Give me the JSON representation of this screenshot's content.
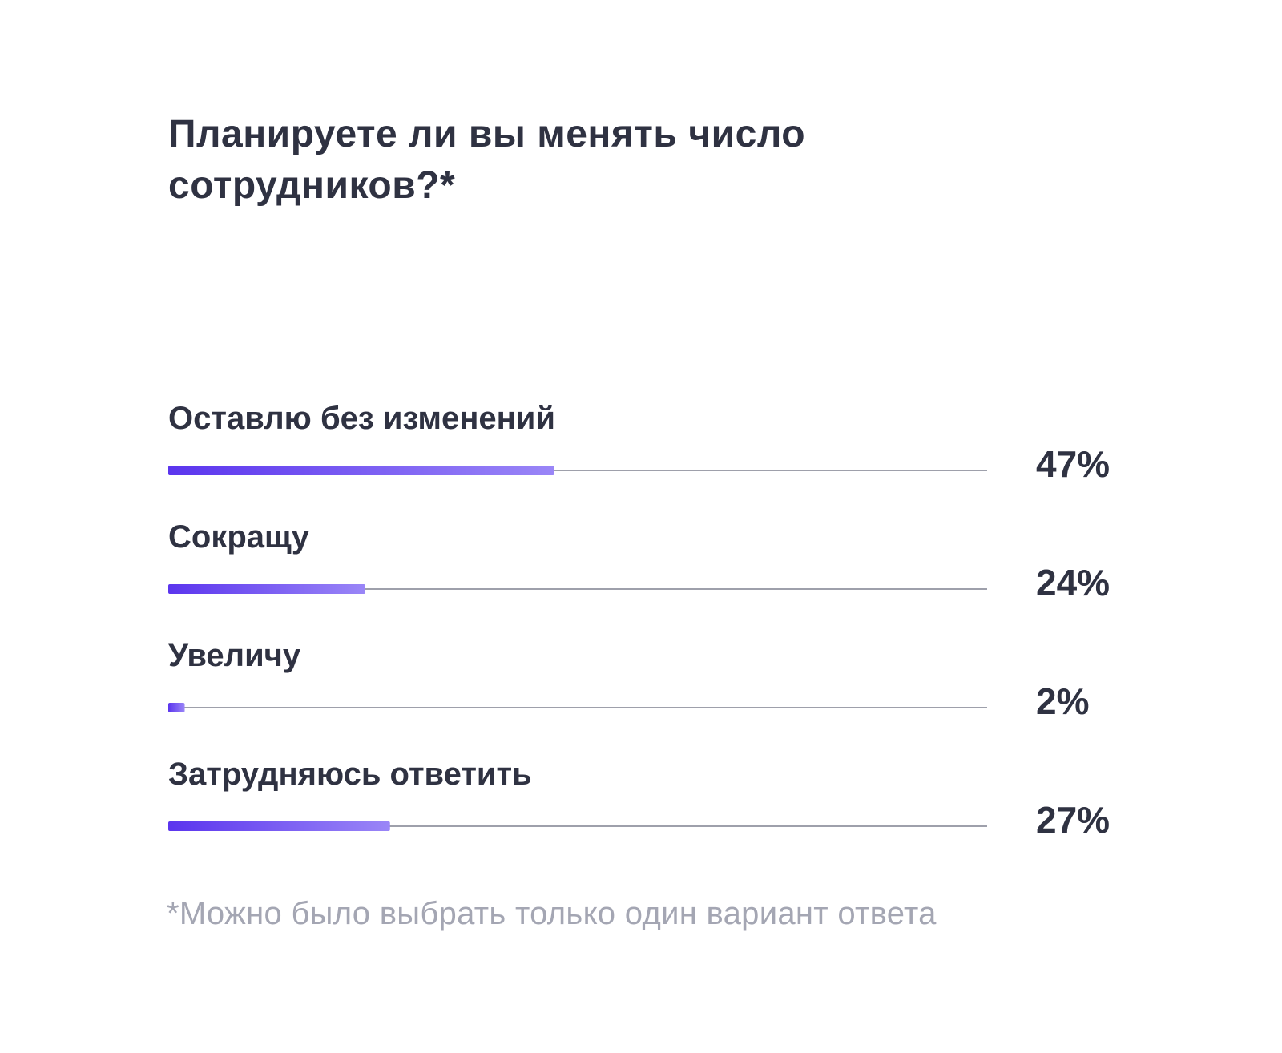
{
  "chart_data": {
    "type": "bar",
    "orientation": "horizontal",
    "title": "Планируете ли вы менять число сотрудников?*",
    "categories": [
      "Оставлю без изменений",
      "Сокращу",
      "Увеличу",
      "Затрудняюсь ответить"
    ],
    "values": [
      47,
      24,
      2,
      27
    ],
    "value_labels": [
      "47%",
      "24%",
      "2%",
      "27%"
    ],
    "unit": "%",
    "xlim": [
      0,
      100
    ],
    "grid": false,
    "legend": "none",
    "footnote": "*Можно было выбрать только один вариант ответа"
  },
  "colors": {
    "bar_start": "#5b35ee",
    "bar_end": "#9a86f7",
    "track": "#9ea0ab",
    "text": "#2f3242",
    "footnote": "#a4a6b3"
  }
}
